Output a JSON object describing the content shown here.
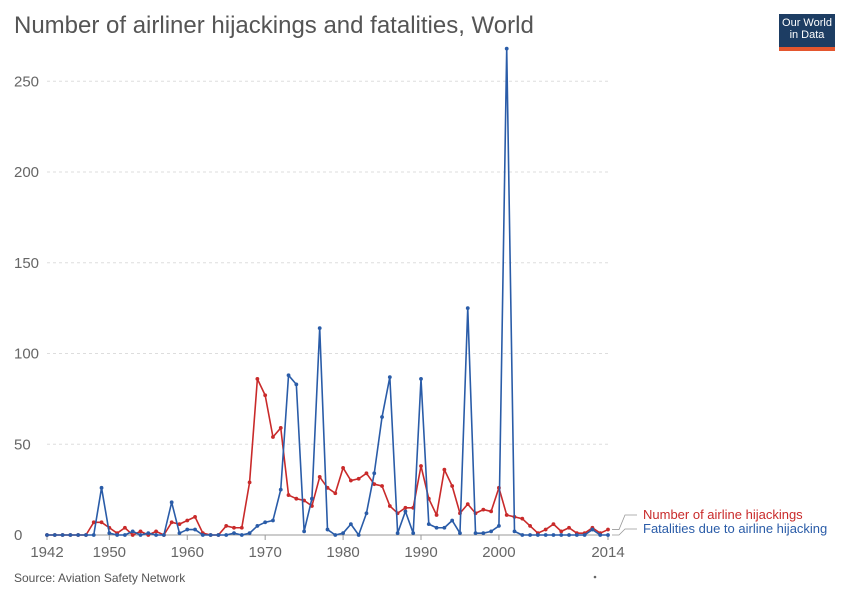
{
  "title": "Number of airliner hijackings and fatalities, World",
  "logo": {
    "line1": "Our World",
    "line2": "in Data"
  },
  "source": "Source: Aviation Safety Network",
  "colors": {
    "hijackings": "#c92a2a",
    "fatalities": "#2a5ca8",
    "grid": "#dddddd",
    "axis": "#666666"
  },
  "chart_data": {
    "type": "line",
    "title": "Number of airliner hijackings and fatalities, World",
    "ylim": [
      0,
      270
    ],
    "xlim": [
      1942,
      2014
    ],
    "y_ticks": [
      0,
      50,
      100,
      150,
      200,
      250
    ],
    "x_ticks": [
      1942,
      1950,
      1960,
      1970,
      1980,
      1990,
      2000,
      2014
    ],
    "grid": true,
    "legend": "right",
    "x": [
      1942,
      1943,
      1944,
      1945,
      1946,
      1947,
      1948,
      1949,
      1950,
      1951,
      1952,
      1953,
      1954,
      1955,
      1956,
      1957,
      1958,
      1959,
      1960,
      1961,
      1962,
      1963,
      1964,
      1965,
      1966,
      1967,
      1968,
      1969,
      1970,
      1971,
      1972,
      1973,
      1974,
      1975,
      1976,
      1977,
      1978,
      1979,
      1980,
      1981,
      1982,
      1983,
      1984,
      1985,
      1986,
      1987,
      1988,
      1989,
      1990,
      1991,
      1992,
      1993,
      1994,
      1995,
      1996,
      1997,
      1998,
      1999,
      2000,
      2001,
      2002,
      2003,
      2004,
      2005,
      2006,
      2007,
      2008,
      2009,
      2010,
      2011,
      2012,
      2013,
      2014
    ],
    "series": [
      {
        "name": "Number of airline hijackings",
        "values": [
          0,
          0,
          0,
          0,
          0,
          0,
          7,
          7,
          4,
          1,
          4,
          0,
          2,
          0,
          2,
          0,
          7,
          6,
          8,
          10,
          1,
          0,
          0,
          5,
          4,
          4,
          29,
          86,
          77,
          54,
          59,
          22,
          20,
          19,
          16,
          32,
          26,
          23,
          37,
          30,
          31,
          34,
          28,
          27,
          16,
          12,
          15,
          15,
          38,
          20,
          11,
          36,
          27,
          12,
          17,
          12,
          14,
          13,
          26,
          11,
          10,
          9,
          5,
          1,
          3,
          6,
          2,
          4,
          1,
          1,
          4,
          1,
          3
        ]
      },
      {
        "name": "Fatalities due to airline hijacking",
        "values": [
          0,
          0,
          0,
          0,
          0,
          0,
          0,
          26,
          1,
          0,
          0,
          2,
          0,
          1,
          0,
          0,
          18,
          1,
          3,
          3,
          0,
          0,
          0,
          0,
          1,
          0,
          1,
          5,
          7,
          8,
          25,
          88,
          83,
          2,
          20,
          114,
          3,
          0,
          1,
          6,
          0,
          12,
          34,
          65,
          87,
          1,
          13,
          1,
          86,
          6,
          4,
          4,
          8,
          1,
          125,
          1,
          1,
          2,
          5,
          268,
          2,
          0,
          0,
          0,
          0,
          0,
          0,
          0,
          0,
          0,
          3,
          0,
          0
        ]
      }
    ]
  }
}
